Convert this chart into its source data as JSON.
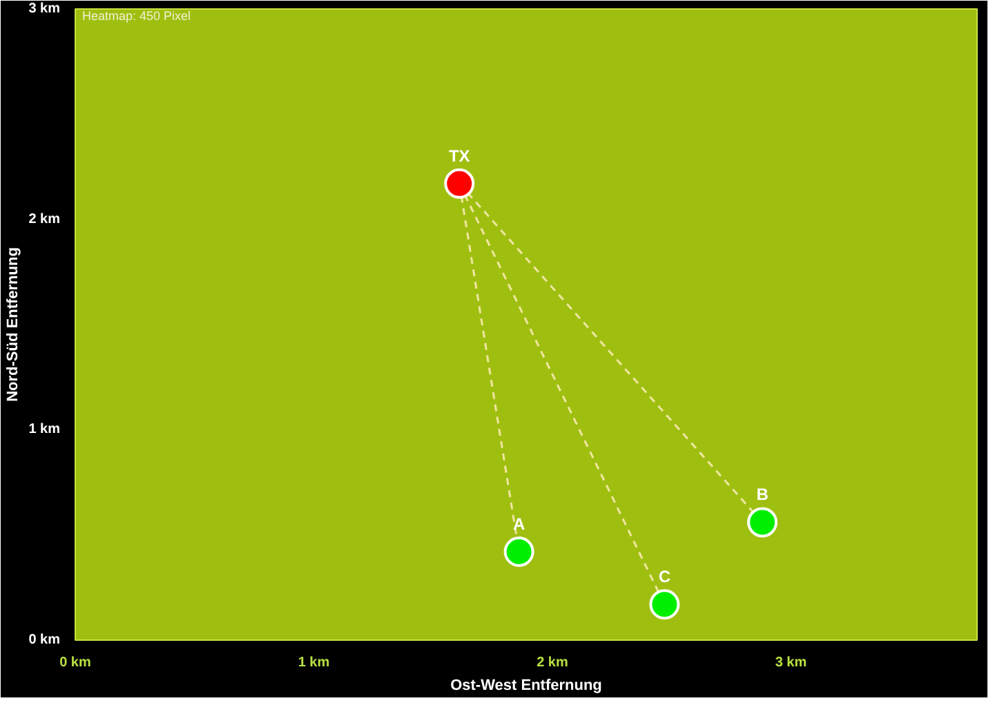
{
  "chart_data": {
    "type": "scatter",
    "xlabel": "Ost-West Entfernung",
    "ylabel": "Nord-Süd Entfernung",
    "annotations": [
      "Heatmap: 450 Pixel"
    ],
    "xlim": [
      0,
      3.78
    ],
    "ylim": [
      0,
      3
    ],
    "xticks": [
      {
        "value": 0,
        "label": "0 km"
      },
      {
        "value": 1,
        "label": "1 km"
      },
      {
        "value": 2,
        "label": "2 km"
      },
      {
        "value": 3,
        "label": "3 km"
      }
    ],
    "yticks": [
      {
        "value": 0,
        "label": "0 km"
      },
      {
        "value": 1,
        "label": "1 km"
      },
      {
        "value": 2,
        "label": "2 km"
      },
      {
        "value": 3,
        "label": "3 km"
      }
    ],
    "marker": "circle",
    "series": [
      {
        "type": "line",
        "marker": "none",
        "line_style": "dashed",
        "color": "#f0e6a0",
        "x": [
          1.61,
          1.86
        ],
        "values": [
          2.17,
          0.42
        ]
      },
      {
        "type": "line",
        "marker": "none",
        "line_style": "dashed",
        "color": "#f0e6a0",
        "x": [
          1.61,
          2.47
        ],
        "values": [
          2.17,
          0.17
        ]
      },
      {
        "type": "line",
        "marker": "none",
        "line_style": "dashed",
        "color": "#f0e6a0",
        "x": [
          1.61,
          2.88
        ],
        "values": [
          2.17,
          0.56
        ]
      },
      {
        "name": "TX",
        "color": "#ff0000",
        "x": [
          1.61
        ],
        "values": [
          2.17
        ]
      },
      {
        "name": "A",
        "color": "#00ee00",
        "x": [
          1.86
        ],
        "values": [
          0.42
        ]
      },
      {
        "name": "B",
        "color": "#00ee00",
        "x": [
          2.88
        ],
        "values": [
          0.56
        ]
      },
      {
        "name": "C",
        "color": "#00ee00",
        "x": [
          2.47
        ],
        "values": [
          0.17
        ]
      }
    ]
  }
}
